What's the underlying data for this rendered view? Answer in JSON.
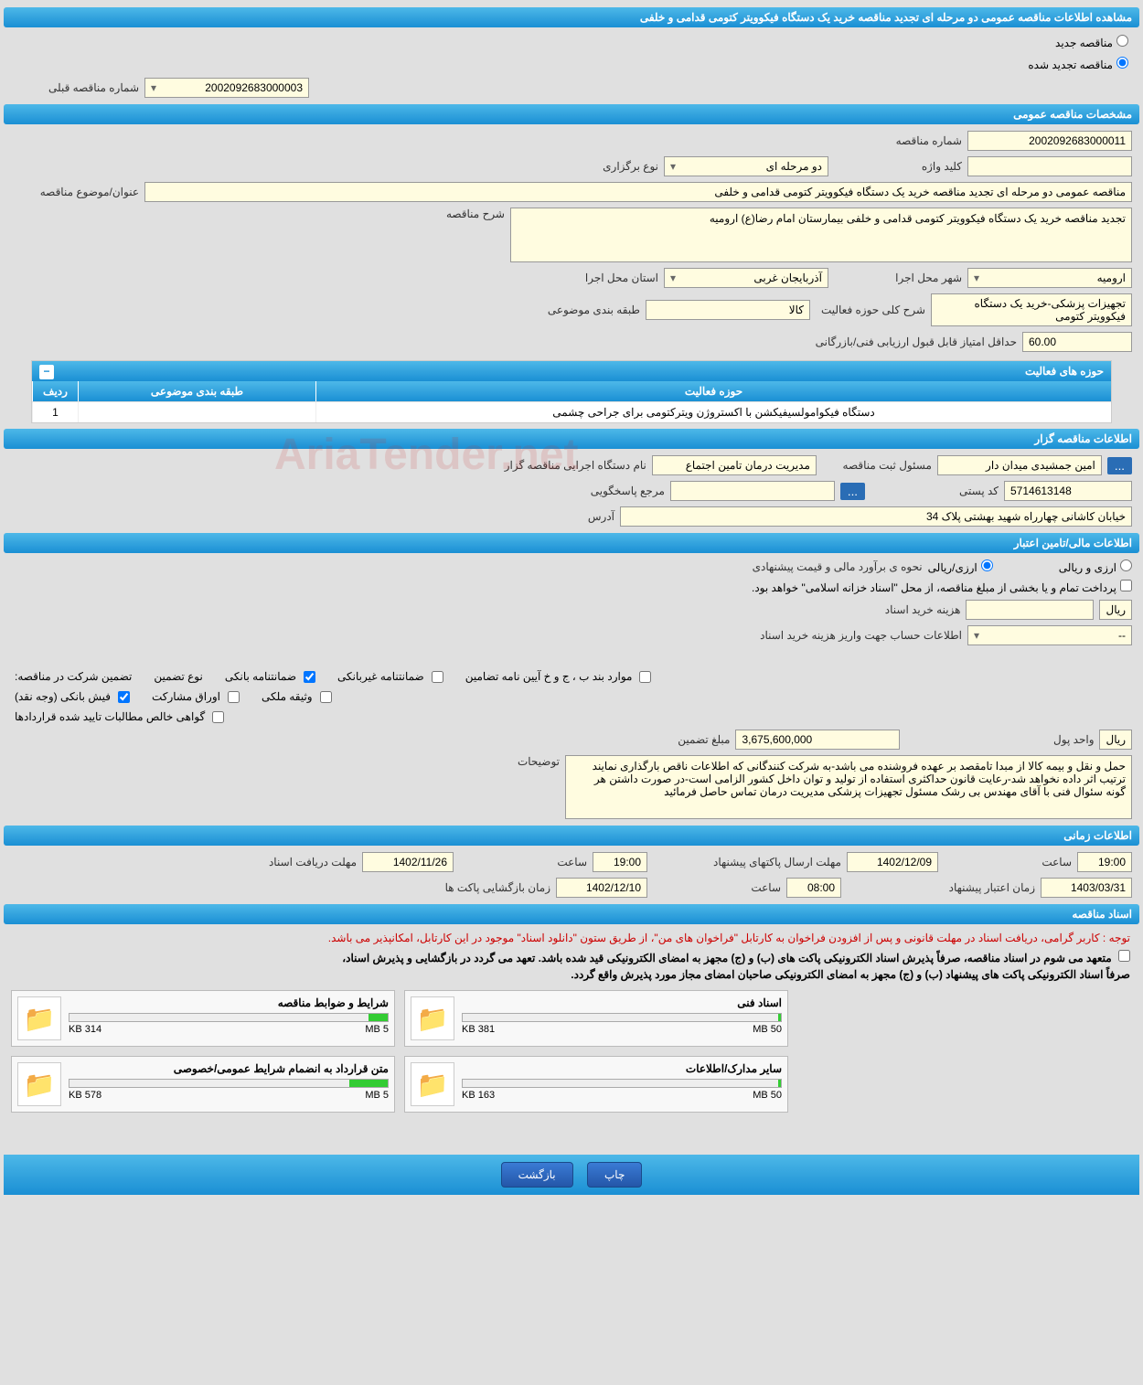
{
  "page_title": "مشاهده اطلاعات مناقصه عمومی دو مرحله ای تجدید مناقصه خرید یک دستگاه فیکوویتر کتومی قدامی و خلفی",
  "tender_type": {
    "new_label": "مناقصه جدید",
    "renewed_label": "مناقصه تجدید شده",
    "prev_number_label": "شماره مناقصه قبلی",
    "prev_number_value": "2002092683000003"
  },
  "sections": {
    "general": "مشخصات مناقصه عمومی",
    "organizer": "اطلاعات مناقصه گزار",
    "financial": "اطلاعات مالی/تامین اعتبار",
    "timing": "اطلاعات زمانی",
    "documents": "اسناد مناقصه"
  },
  "general": {
    "tender_no_label": "شماره مناقصه",
    "tender_no": "2002092683000011",
    "type_label": "نوع برگزاری",
    "type_value": "دو مرحله ای",
    "keyword_label": "کلید واژه",
    "keyword_value": "",
    "title_label": "عنوان/موضوع مناقصه",
    "title_value": "مناقصه عمومی دو مرحله ای تجدید مناقصه خرید یک دستگاه فیکوویتر کتومی قدامی و خلفی",
    "desc_label": "شرح مناقصه",
    "desc_value": "تجدید مناقصه خرید یک دستگاه فیکوویتر کتومی قدامی و خلفی بیمارستان امام رضا(ع) ارومیه",
    "province_label": "استان محل اجرا",
    "province_value": "آذربایجان غربی",
    "city_label": "شهر محل اجرا",
    "city_value": "ارومیه",
    "category_label": "طبقه بندی موضوعی",
    "category_value": "کالا",
    "activity_desc_label": "شرح کلی حوزه فعالیت",
    "activity_desc_value": "تجهیزات پزشکی-خرید یک دستگاه فیکوویتر کتومی",
    "min_score_label": "حداقل امتیاز قابل قبول ارزیابی فنی/بازرگانی",
    "min_score_value": "60.00"
  },
  "activities": {
    "header": "حوزه های فعالیت",
    "col_idx": "ردیف",
    "col_cat": "طبقه بندی موضوعی",
    "col_act": "حوزه فعالیت",
    "rows": [
      {
        "idx": "1",
        "cat": "",
        "act": "دستگاه فیکوامولسیفیکشن با اکستروژن ویترکتومی برای جراحی چشمی"
      }
    ]
  },
  "organizer": {
    "name_label": "نام دستگاه اجرایی مناقصه گزار",
    "name_value": "مدیریت درمان تامین اجتماع",
    "registrant_label": "مسئول ثبت مناقصه",
    "registrant_value": "امین جمشیدی میدان دار",
    "contact_label": "مرجع پاسخگویی",
    "contact_btn": "...",
    "postal_label": "کد پستی",
    "postal_value": "5714613148",
    "address_label": "آدرس",
    "address_value": "خیابان کاشانی چهارراه شهید بهشتی پلاک 34"
  },
  "financial": {
    "estimate_label": "نحوه ی برآورد مالی و قیمت پیشنهادی",
    "rial_label": "ارزی/ریالی",
    "forex_label": "ارزی و ریالی",
    "treasury_label": "پرداخت تمام و یا بخشی از مبلغ مناقصه، از محل \"اسناد خزانه اسلامی\" خواهد بود.",
    "doc_cost_label": "هزینه خرید اسناد",
    "doc_cost_value": "",
    "currency_rial": "ریال",
    "account_info_label": "اطلاعات حساب جهت واریز هزینه خرید اسناد",
    "account_info_value": "--",
    "guarantee_label": "تضمین شرکت در مناقصه:",
    "guarantee_type_label": "نوع تضمین",
    "chk_bank_guarantee": "ضمانتنامه بانکی",
    "chk_nonbank_guarantee": "ضمانتنامه غیربانکی",
    "chk_regulation": "موارد بند ب ، ج و خ آیین نامه تضامین",
    "chk_cash": "فیش بانکی (وجه نقد)",
    "chk_participation": "اوراق مشارکت",
    "chk_property": "وثیقه ملکی",
    "chk_receivables": "گواهی خالص مطالبات تایید شده قراردادها",
    "guarantee_amount_label": "مبلغ تضمین",
    "guarantee_amount_value": "3,675,600,000",
    "unit_label": "واحد پول",
    "unit_value": "ریال",
    "notes_label": "توضیحات",
    "notes_value": "حمل و نقل و بیمه کالا از مبدا تامقصد بر عهده فروشنده می باشد-به شرکت کنندگانی که اطلاعات ناقص بارگذاری نمایند ترتیب اثر داده نخواهد شد-رعایت قانون حداکثری استفاده از تولید و توان داخل کشور الزامی است-در صورت داشتن هر گونه سئوال فنی با آقای مهندس بی رشک مسئول تجهیزات پزشکی مدیریت درمان تماس حاصل فرمائید"
  },
  "timing": {
    "doc_receive_label": "مهلت دریافت اسناد",
    "doc_receive_date": "1402/11/26",
    "doc_receive_time_label": "ساعت",
    "doc_receive_time": "19:00",
    "bid_submit_label": "مهلت ارسال پاکتهای پیشنهاد",
    "bid_submit_date": "1402/12/09",
    "bid_submit_time": "19:00",
    "opening_label": "زمان بازگشایی پاکت ها",
    "opening_date": "1402/12/10",
    "opening_time": "08:00",
    "validity_label": "زمان اعتبار پیشنهاد",
    "validity_date": "1403/03/31"
  },
  "doc_notes": {
    "red": "توجه : کاربر گرامی، دریافت اسناد در مهلت قانونی و پس از افزودن فراخوان به کارتابل \"فراخوان های من\"، از طریق ستون \"دانلود اسناد\" موجود در این کارتابل، امکانپذیر می باشد.",
    "black1": "متعهد می شوم در اسناد مناقصه، صرفاً پذیرش اسناد الکترونیکی پاکت های (ب) و (ج) مجهز به امضای الکترونیکی قید شده باشد. تعهد می گردد در بازگشایی و پذیرش اسناد،",
    "black2": "صرفاً اسناد الکترونیکی پاکت های پیشنهاد (ب) و (ج) مجهز به امضای الکترونیکی صاحبان امضای مجاز مورد پذیرش واقع گردد."
  },
  "documents": [
    {
      "title": "شرایط و ضوابط مناقصه",
      "size": "314 KB",
      "max": "5 MB",
      "pct": 6
    },
    {
      "title": "اسناد فنی",
      "size": "381 KB",
      "max": "50 MB",
      "pct": 1
    },
    {
      "title": "متن قرارداد به انضمام شرایط عمومی/خصوصی",
      "size": "578 KB",
      "max": "5 MB",
      "pct": 12
    },
    {
      "title": "سایر مدارک/اطلاعات",
      "size": "163 KB",
      "max": "50 MB",
      "pct": 1
    }
  ],
  "buttons": {
    "print": "چاپ",
    "back": "بازگشت"
  },
  "watermark": "AriaTender.net"
}
